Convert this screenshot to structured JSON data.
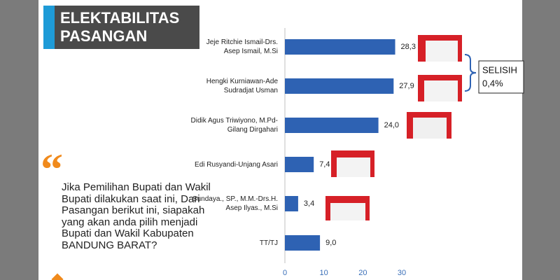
{
  "chart_data": {
    "type": "bar",
    "orientation": "horizontal",
    "title": "ELEKTABILITAS PASANGAN",
    "categories": [
      "Jeje Ritchie Ismail-Drs. Asep Ismail, M.Si",
      "Hengki Kurniawan-Ade Sudradjat Usman",
      "Didik Agus Triwiyono, M.Pd-Gilang Dirgahari",
      "Edi Rusyandi-Unjang Asari",
      "Sundaya., SP., M.M.-Drs.H. Asep Ilyas., M.Si",
      "TT/TJ"
    ],
    "values": [
      28.3,
      27.9,
      24.0,
      7.4,
      3.4,
      9.0
    ],
    "value_labels": [
      "28,3",
      "27,9",
      "24,0",
      "7,4",
      "3,4",
      "9,0"
    ],
    "color": "#2e62b3",
    "xlim": [
      0,
      30
    ],
    "xticks": [
      0,
      10,
      20,
      30
    ],
    "annotation": [
      "SELISIH",
      "0,4%"
    ]
  },
  "slide": {
    "question": "Jika Pemilihan Bupati dan Wakil Bupati dilakukan saat ini, Dari Pasangan berikut ini, siapakah yang akan anda pilih menjadi Bupati dan Wakil Kabupaten BANDUNG BARAT?"
  }
}
